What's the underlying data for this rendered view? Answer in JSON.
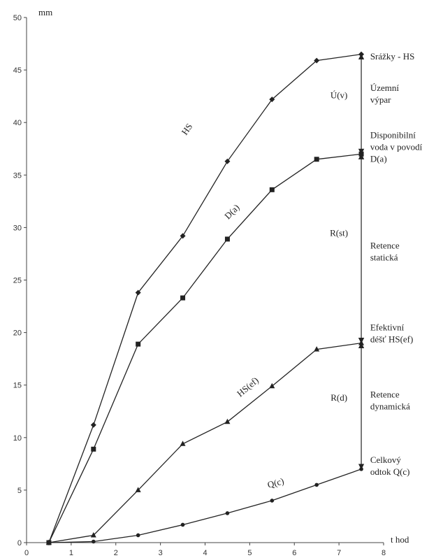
{
  "chart_data": {
    "type": "line",
    "title": "",
    "ylabel": "mm",
    "xlabel": "t hod",
    "xlim": [
      0,
      8
    ],
    "ylim": [
      0,
      50
    ],
    "xticks": [
      0,
      1,
      2,
      3,
      4,
      5,
      6,
      7,
      8
    ],
    "yticks": [
      0,
      5,
      10,
      15,
      20,
      25,
      30,
      35,
      40,
      45,
      50
    ],
    "grid": false,
    "series": [
      {
        "name": "HS",
        "marker": "diamond",
        "x": [
          0.5,
          1.5,
          2.5,
          3.5,
          4.5,
          5.5,
          6.5,
          7.5
        ],
        "y": [
          0,
          11.2,
          23.8,
          29.2,
          36.3,
          42.2,
          45.9,
          46.5
        ]
      },
      {
        "name": "D(a)",
        "marker": "square",
        "x": [
          0.5,
          1.5,
          2.5,
          3.5,
          4.5,
          5.5,
          6.5,
          7.5
        ],
        "y": [
          0,
          8.9,
          18.9,
          23.3,
          28.9,
          33.6,
          36.5,
          37.0
        ]
      },
      {
        "name": "HS(ef)",
        "marker": "triangle",
        "x": [
          0.5,
          1.5,
          2.5,
          3.5,
          4.5,
          5.5,
          6.5,
          7.5
        ],
        "y": [
          0,
          0.7,
          5.0,
          9.4,
          11.5,
          14.9,
          18.4,
          19.0
        ]
      },
      {
        "name": "Q(c)",
        "marker": "circle",
        "x": [
          0.5,
          1.5,
          2.5,
          3.5,
          4.5,
          5.5,
          6.5,
          7.5
        ],
        "y": [
          0,
          0.1,
          0.7,
          1.7,
          2.8,
          4.0,
          5.5,
          7.0
        ]
      }
    ],
    "series_labels": [
      {
        "text": "HS",
        "x": 3.65,
        "y": 39.2,
        "angle": -55
      },
      {
        "text": "D(a)",
        "x": 4.65,
        "y": 31.3,
        "angle": -45
      },
      {
        "text": "HS(ef)",
        "x": 5.0,
        "y": 14.6,
        "angle": -40
      },
      {
        "text": "Q(c)",
        "x": 5.6,
        "y": 5.4,
        "angle": -15
      }
    ],
    "arrows": [
      {
        "x": 7.5,
        "from": 46.5,
        "to": 37.0
      },
      {
        "x": 7.5,
        "from": 37.0,
        "to": 19.0
      },
      {
        "x": 7.5,
        "from": 19.0,
        "to": 7.0
      }
    ],
    "span_labels": [
      {
        "text": "Ú(v)",
        "x": 7.0,
        "y": 42.3
      },
      {
        "text": "R(st)",
        "x": 7.0,
        "y": 29.2
      },
      {
        "text": "R(d)",
        "x": 7.0,
        "y": 13.5
      }
    ],
    "annotations": [
      {
        "lines": [
          "Srážky - HS"
        ],
        "x": 7.7,
        "y": 46.0
      },
      {
        "lines": [
          "Územní",
          "výpar"
        ],
        "x": 7.7,
        "y": 43.0
      },
      {
        "lines": [
          "Disponibilní",
          "voda v povodí",
          "D(a)"
        ],
        "x": 7.7,
        "y": 38.5
      },
      {
        "lines": [
          "Retence",
          "statická"
        ],
        "x": 7.7,
        "y": 28.0
      },
      {
        "lines": [
          "Efektivní",
          "déšť  HS(ef)"
        ],
        "x": 7.7,
        "y": 20.2
      },
      {
        "lines": [
          "Retence",
          "dynamická"
        ],
        "x": 7.7,
        "y": 13.8
      },
      {
        "lines": [
          "Celkový",
          "odtok  Q(c)"
        ],
        "x": 7.7,
        "y": 7.6
      }
    ]
  }
}
